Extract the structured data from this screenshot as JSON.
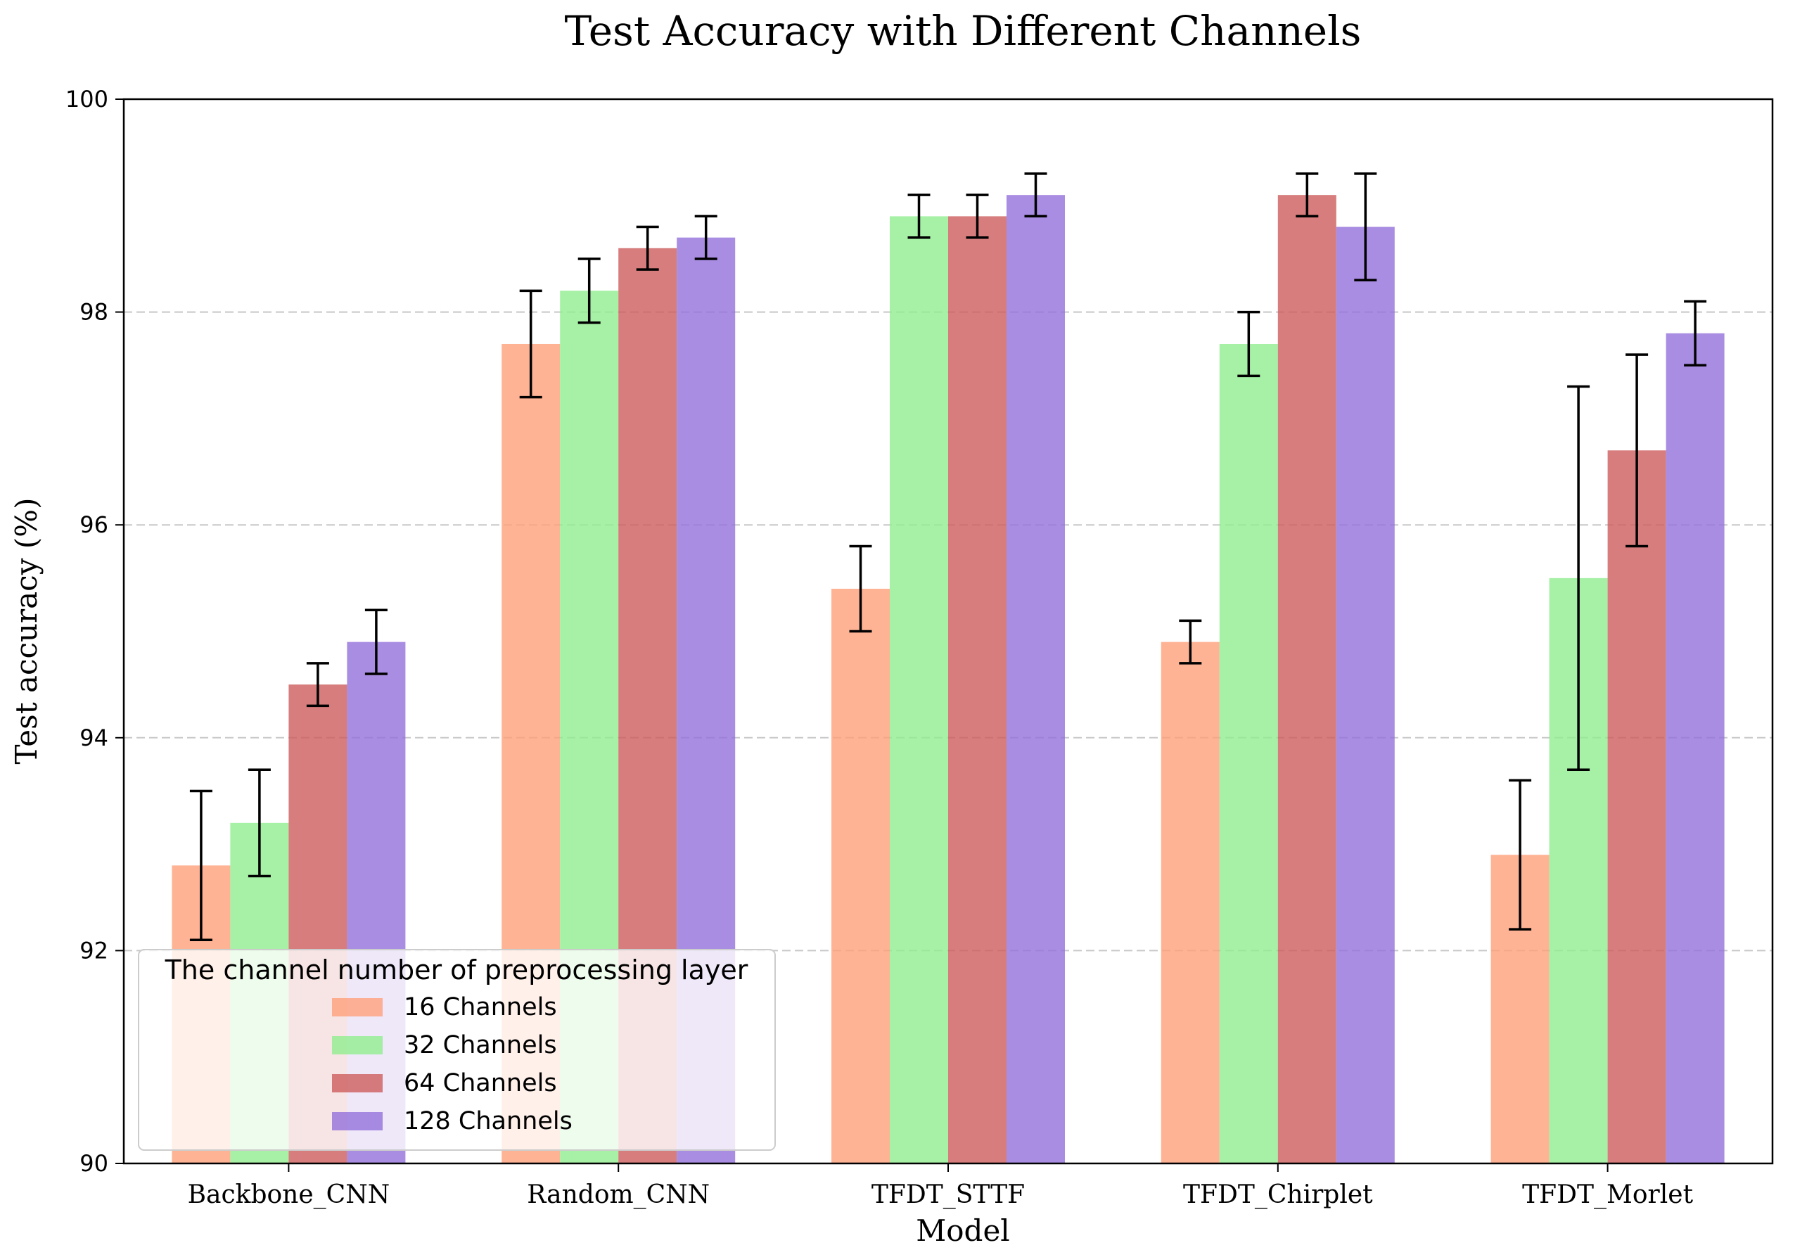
{
  "chart_data": {
    "type": "bar",
    "title": "Test Accuracy with Different Channels",
    "xlabel": "Model",
    "ylabel": "Test accuracy (%)",
    "ylim": [
      90,
      100
    ],
    "yticks": [
      90,
      92,
      94,
      96,
      98,
      100
    ],
    "grid": "horizontal dashed",
    "categories": [
      "Backbone_CNN",
      "Random_CNN",
      "TFDT_STTF",
      "TFDT_Chirplet",
      "TFDT_Morlet"
    ],
    "series": [
      {
        "name": "16 Channels",
        "color": "#FFA07A",
        "values": [
          92.8,
          97.7,
          95.4,
          94.9,
          92.9
        ],
        "errors": [
          0.7,
          0.5,
          0.4,
          0.2,
          0.7
        ]
      },
      {
        "name": "32 Channels",
        "color": "#90EE90",
        "values": [
          93.2,
          98.2,
          98.9,
          97.7,
          95.5
        ],
        "errors": [
          0.5,
          0.3,
          0.2,
          0.3,
          1.8
        ]
      },
      {
        "name": "64 Channels",
        "color": "#CD5C5C",
        "values": [
          94.5,
          98.6,
          98.9,
          99.1,
          96.7
        ],
        "errors": [
          0.2,
          0.2,
          0.2,
          0.2,
          0.9
        ]
      },
      {
        "name": "128 Channels",
        "color": "#9370DB",
        "values": [
          94.9,
          98.7,
          99.1,
          98.8,
          97.8
        ],
        "errors": [
          0.3,
          0.2,
          0.2,
          0.5,
          0.3
        ]
      }
    ],
    "legend": {
      "title": "The channel number of preprocessing layer",
      "placement": "lower-left"
    }
  }
}
